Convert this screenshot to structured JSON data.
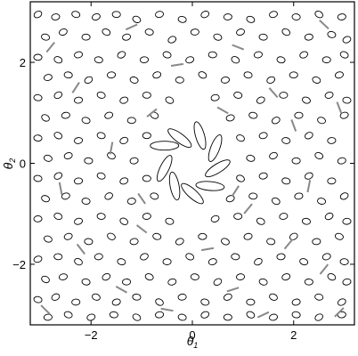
{
  "chart_data": {
    "type": "scatter",
    "title": "",
    "xlabel": "θ",
    "xlabel_sub": "1",
    "ylabel": "θ",
    "ylabel_sub": "2",
    "xlim": [
      -3.2,
      3.2
    ],
    "ylim": [
      -3.2,
      3.2
    ],
    "xticks": [
      -2,
      0,
      2
    ],
    "yticks": [
      -2,
      0,
      2
    ],
    "xtick_labels": [
      "−2",
      "0",
      "2"
    ],
    "ytick_labels": [
      "−2",
      "0",
      "2"
    ],
    "grid": false,
    "legend": "none",
    "series": [
      {
        "marker": "ellipse",
        "color": "#000000",
        "points": [
          [
            -3.05,
            2.95
          ],
          [
            -2.7,
            2.9
          ],
          [
            -2.3,
            2.95
          ],
          [
            -1.9,
            2.9
          ],
          [
            -1.5,
            2.95
          ],
          [
            -1.1,
            2.85
          ],
          [
            -0.65,
            2.95
          ],
          [
            -0.2,
            2.85
          ],
          [
            0.25,
            2.95
          ],
          [
            0.7,
            2.9
          ],
          [
            1.15,
            2.85
          ],
          [
            1.6,
            2.95
          ],
          [
            2.05,
            2.9
          ],
          [
            2.5,
            2.95
          ],
          [
            2.95,
            2.9
          ],
          [
            -2.9,
            2.5
          ],
          [
            -2.55,
            2.6
          ],
          [
            -2.1,
            2.5
          ],
          [
            -1.7,
            2.6
          ],
          [
            -1.3,
            2.5
          ],
          [
            -0.85,
            2.6
          ],
          [
            -0.4,
            2.45
          ],
          [
            0.05,
            2.6
          ],
          [
            0.5,
            2.5
          ],
          [
            0.95,
            2.6
          ],
          [
            1.4,
            2.5
          ],
          [
            1.85,
            2.6
          ],
          [
            2.3,
            2.5
          ],
          [
            2.75,
            2.55
          ],
          [
            3.05,
            2.45
          ],
          [
            -3.05,
            2.1
          ],
          [
            -2.65,
            2.05
          ],
          [
            -2.25,
            2.15
          ],
          [
            -1.85,
            2.05
          ],
          [
            -1.4,
            2.15
          ],
          [
            -0.95,
            2.05
          ],
          [
            -0.5,
            2.15
          ],
          [
            -0.05,
            2.05
          ],
          [
            0.4,
            2.15
          ],
          [
            0.85,
            2.05
          ],
          [
            1.3,
            2.15
          ],
          [
            1.75,
            2.05
          ],
          [
            2.2,
            2.15
          ],
          [
            2.65,
            2.05
          ],
          [
            3.0,
            2.15
          ],
          [
            -2.85,
            1.7
          ],
          [
            -2.45,
            1.75
          ],
          [
            -2.05,
            1.65
          ],
          [
            -1.6,
            1.75
          ],
          [
            -1.15,
            1.65
          ],
          [
            -0.7,
            1.75
          ],
          [
            -0.25,
            1.65
          ],
          [
            0.2,
            1.75
          ],
          [
            0.65,
            1.65
          ],
          [
            1.1,
            1.75
          ],
          [
            1.55,
            1.65
          ],
          [
            2.0,
            1.75
          ],
          [
            2.45,
            1.65
          ],
          [
            2.9,
            1.75
          ],
          [
            -3.05,
            1.3
          ],
          [
            -2.65,
            1.35
          ],
          [
            -2.25,
            1.25
          ],
          [
            -1.8,
            1.35
          ],
          [
            -1.35,
            1.25
          ],
          [
            -0.9,
            1.35
          ],
          [
            -0.45,
            1.25
          ],
          [
            0.45,
            1.3
          ],
          [
            0.9,
            1.35
          ],
          [
            1.35,
            1.25
          ],
          [
            1.8,
            1.35
          ],
          [
            2.25,
            1.25
          ],
          [
            2.7,
            1.35
          ],
          [
            3.05,
            1.25
          ],
          [
            -2.9,
            0.9
          ],
          [
            -2.5,
            0.95
          ],
          [
            -2.1,
            0.85
          ],
          [
            -1.65,
            0.95
          ],
          [
            -1.2,
            0.85
          ],
          [
            -0.75,
            0.95
          ],
          [
            0.75,
            0.9
          ],
          [
            1.2,
            0.95
          ],
          [
            1.65,
            0.85
          ],
          [
            2.1,
            0.95
          ],
          [
            2.55,
            0.85
          ],
          [
            3.0,
            0.95
          ],
          [
            -3.05,
            0.5
          ],
          [
            -2.65,
            0.55
          ],
          [
            -2.25,
            0.45
          ],
          [
            -1.8,
            0.55
          ],
          [
            -1.35,
            0.45
          ],
          [
            -0.9,
            0.55
          ],
          [
            0.95,
            0.5
          ],
          [
            1.4,
            0.55
          ],
          [
            1.85,
            0.45
          ],
          [
            2.3,
            0.55
          ],
          [
            2.75,
            0.45
          ],
          [
            -2.85,
            0.1
          ],
          [
            -2.45,
            0.15
          ],
          [
            -2.05,
            0.05
          ],
          [
            -1.6,
            0.15
          ],
          [
            -1.15,
            0.05
          ],
          [
            1.15,
            0.1
          ],
          [
            1.6,
            0.15
          ],
          [
            2.05,
            0.05
          ],
          [
            2.5,
            0.15
          ],
          [
            2.95,
            0.05
          ],
          [
            -3.05,
            -0.3
          ],
          [
            -2.65,
            -0.25
          ],
          [
            -2.25,
            -0.35
          ],
          [
            -1.8,
            -0.25
          ],
          [
            -1.35,
            -0.35
          ],
          [
            -0.9,
            -0.3
          ],
          [
            0.95,
            -0.3
          ],
          [
            1.4,
            -0.25
          ],
          [
            1.85,
            -0.35
          ],
          [
            2.3,
            -0.25
          ],
          [
            2.75,
            -0.35
          ],
          [
            -2.9,
            -0.7
          ],
          [
            -2.5,
            -0.65
          ],
          [
            -2.1,
            -0.75
          ],
          [
            -1.65,
            -0.65
          ],
          [
            -1.2,
            -0.75
          ],
          [
            -0.75,
            -0.65
          ],
          [
            0.75,
            -0.7
          ],
          [
            1.2,
            -0.65
          ],
          [
            1.65,
            -0.75
          ],
          [
            2.1,
            -0.65
          ],
          [
            2.55,
            -0.75
          ],
          [
            3.0,
            -0.65
          ],
          [
            -3.05,
            -1.1
          ],
          [
            -2.65,
            -1.05
          ],
          [
            -2.25,
            -1.15
          ],
          [
            -1.8,
            -1.05
          ],
          [
            -1.35,
            -1.15
          ],
          [
            -0.9,
            -1.05
          ],
          [
            -0.45,
            -1.15
          ],
          [
            0.45,
            -1.1
          ],
          [
            0.9,
            -1.05
          ],
          [
            1.35,
            -1.15
          ],
          [
            1.8,
            -1.05
          ],
          [
            2.25,
            -1.15
          ],
          [
            2.7,
            -1.05
          ],
          [
            3.05,
            -1.15
          ],
          [
            -2.85,
            -1.5
          ],
          [
            -2.45,
            -1.45
          ],
          [
            -2.05,
            -1.55
          ],
          [
            -1.6,
            -1.45
          ],
          [
            -1.15,
            -1.55
          ],
          [
            -0.7,
            -1.45
          ],
          [
            -0.25,
            -1.55
          ],
          [
            0.2,
            -1.45
          ],
          [
            0.65,
            -1.55
          ],
          [
            1.1,
            -1.45
          ],
          [
            1.55,
            -1.55
          ],
          [
            2.0,
            -1.45
          ],
          [
            2.45,
            -1.55
          ],
          [
            2.9,
            -1.45
          ],
          [
            -3.05,
            -1.9
          ],
          [
            -2.65,
            -1.85
          ],
          [
            -2.25,
            -1.95
          ],
          [
            -1.85,
            -1.85
          ],
          [
            -1.4,
            -1.95
          ],
          [
            -0.95,
            -1.85
          ],
          [
            -0.5,
            -1.95
          ],
          [
            -0.05,
            -1.85
          ],
          [
            0.4,
            -1.95
          ],
          [
            0.85,
            -1.85
          ],
          [
            1.3,
            -1.95
          ],
          [
            1.75,
            -1.85
          ],
          [
            2.2,
            -1.95
          ],
          [
            2.65,
            -1.85
          ],
          [
            3.0,
            -1.95
          ],
          [
            -2.9,
            -2.3
          ],
          [
            -2.55,
            -2.25
          ],
          [
            -2.1,
            -2.35
          ],
          [
            -1.7,
            -2.25
          ],
          [
            -1.3,
            -2.35
          ],
          [
            -0.85,
            -2.25
          ],
          [
            -0.4,
            -2.35
          ],
          [
            0.05,
            -2.25
          ],
          [
            0.5,
            -2.35
          ],
          [
            0.95,
            -2.25
          ],
          [
            1.4,
            -2.35
          ],
          [
            1.85,
            -2.25
          ],
          [
            2.3,
            -2.35
          ],
          [
            2.75,
            -2.25
          ],
          [
            3.05,
            -2.35
          ],
          [
            -3.05,
            -2.7
          ],
          [
            -2.7,
            -2.65
          ],
          [
            -2.3,
            -2.75
          ],
          [
            -1.9,
            -2.65
          ],
          [
            -1.5,
            -2.75
          ],
          [
            -1.1,
            -2.65
          ],
          [
            -0.65,
            -2.75
          ],
          [
            -0.2,
            -2.65
          ],
          [
            0.25,
            -2.75
          ],
          [
            0.7,
            -2.65
          ],
          [
            1.15,
            -2.75
          ],
          [
            1.6,
            -2.65
          ],
          [
            2.05,
            -2.75
          ],
          [
            2.5,
            -2.65
          ],
          [
            2.95,
            -2.75
          ],
          [
            -2.85,
            -3.05
          ],
          [
            -2.45,
            -3.0
          ],
          [
            -2.0,
            -3.05
          ],
          [
            -1.55,
            -3.0
          ],
          [
            -1.1,
            -3.05
          ],
          [
            -0.65,
            -3.0
          ],
          [
            -0.2,
            -3.05
          ],
          [
            0.25,
            -3.0
          ],
          [
            0.7,
            -3.05
          ],
          [
            1.15,
            -3.0
          ],
          [
            1.6,
            -3.05
          ],
          [
            2.05,
            -3.0
          ],
          [
            2.5,
            -3.05
          ],
          [
            2.95,
            -3.0
          ]
        ]
      },
      {
        "marker": "large-ellipse",
        "color": "#000000",
        "points": [
          [
            -0.55,
            0.35
          ],
          [
            -0.25,
            0.5
          ],
          [
            0.15,
            0.55
          ],
          [
            0.45,
            0.3
          ],
          [
            0.5,
            -0.1
          ],
          [
            0.35,
            -0.45
          ],
          [
            0.0,
            -0.6
          ],
          [
            -0.35,
            -0.45
          ],
          [
            -0.55,
            -0.1
          ]
        ]
      },
      {
        "marker": "segment",
        "color": "#888888",
        "points": [
          [
            -2.8,
            2.3
          ],
          [
            -1.2,
            2.7
          ],
          [
            0.9,
            2.3
          ],
          [
            2.6,
            2.75
          ],
          [
            -2.3,
            1.5
          ],
          [
            -0.3,
            1.95
          ],
          [
            1.6,
            1.4
          ],
          [
            2.9,
            1.1
          ],
          [
            -1.6,
            0.3
          ],
          [
            2.0,
            0.75
          ],
          [
            -2.6,
            -0.5
          ],
          [
            2.3,
            -0.45
          ],
          [
            -1.0,
            -1.3
          ],
          [
            1.1,
            -0.9
          ],
          [
            -2.2,
            -1.7
          ],
          [
            0.3,
            -1.7
          ],
          [
            1.9,
            -1.6
          ],
          [
            -1.4,
            -2.5
          ],
          [
            0.8,
            -2.5
          ],
          [
            2.6,
            -2.1
          ],
          [
            -0.5,
            -2.9
          ],
          [
            1.4,
            -3.0
          ],
          [
            -2.9,
            -2.9
          ],
          [
            2.9,
            -2.95
          ],
          [
            -0.8,
            1.0
          ],
          [
            0.6,
            1.05
          ],
          [
            -1.0,
            -0.7
          ],
          [
            0.85,
            -0.55
          ]
        ]
      }
    ]
  }
}
